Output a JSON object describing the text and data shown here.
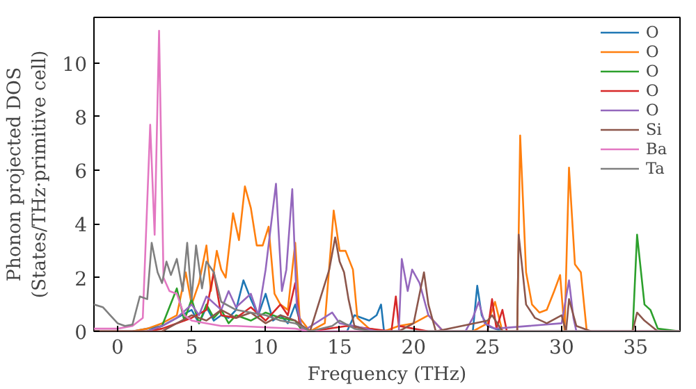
{
  "chart_data": {
    "type": "line",
    "xlabel": "Frequency (THz)",
    "ylabel": "Phonon projected DOS\n(States/THz·primitive cell)",
    "xlim": [
      -1.6,
      38
    ],
    "ylim": [
      0,
      11.7
    ],
    "xticks": [
      0,
      5,
      10,
      15,
      20,
      25,
      30,
      35
    ],
    "yticks": [
      0,
      2,
      4,
      6,
      8,
      10
    ],
    "grid": false,
    "legend": "top right",
    "line_style": "solid",
    "series": [
      {
        "name": "O",
        "color": "#1f77b4",
        "x": [
          -1.6,
          1,
          2,
          3,
          4,
          5,
          5.5,
          6,
          6.5,
          7,
          7.5,
          8,
          8.5,
          9,
          9.5,
          10,
          10.5,
          11,
          11.5,
          12,
          12.5,
          15.5,
          16,
          17,
          17.5,
          17.8,
          18,
          24,
          24.3,
          24.6,
          25,
          26,
          38
        ],
        "values": [
          0,
          0,
          0.1,
          0.2,
          0.5,
          0.8,
          0.3,
          0.9,
          0.4,
          0.6,
          0.5,
          0.8,
          1.9,
          1.2,
          0.6,
          1.4,
          0.4,
          0.6,
          0.3,
          1.0,
          0,
          0,
          0.6,
          0.4,
          0.6,
          1.0,
          0,
          0,
          1.7,
          0.6,
          0.2,
          0,
          0
        ]
      },
      {
        "name": "O",
        "color": "#ff7f0e",
        "x": [
          -1.6,
          1,
          2,
          3,
          4,
          4.6,
          5,
          5.5,
          6,
          6.3,
          6.7,
          7,
          7.3,
          7.8,
          8.2,
          8.6,
          9,
          9.4,
          9.8,
          10.2,
          10.6,
          11,
          11.5,
          12,
          12.3,
          13,
          14,
          14.6,
          15,
          15.4,
          15.9,
          16.2,
          17,
          18,
          19,
          20,
          21,
          22,
          24,
          25,
          25.5,
          26,
          27,
          27.2,
          27.6,
          28,
          28.5,
          29,
          29.5,
          29.9,
          30.2,
          30.5,
          30.9,
          31.3,
          31.7,
          38
        ],
        "values": [
          0,
          0,
          0.1,
          0.3,
          0.6,
          2.2,
          1.0,
          1.8,
          3.2,
          1.5,
          3.0,
          2.3,
          2.0,
          4.4,
          3.4,
          5.4,
          4.6,
          3.2,
          3.2,
          3.9,
          1.4,
          1.0,
          0.8,
          3.3,
          0.5,
          0,
          0.3,
          4.5,
          3.0,
          3.0,
          2.3,
          0.5,
          0.1,
          0,
          0.2,
          0.3,
          0.6,
          0,
          0,
          0.3,
          1.1,
          0,
          0,
          7.3,
          2.2,
          1.0,
          0.7,
          0.8,
          1.5,
          2.1,
          0,
          6.1,
          2.5,
          2.2,
          0,
          0
        ]
      },
      {
        "name": "O",
        "color": "#2ca02c",
        "x": [
          -1.6,
          2,
          3,
          4,
          4.5,
          5,
          5.5,
          6,
          6.5,
          7,
          7.5,
          8,
          9,
          10,
          11,
          12,
          12.5,
          34.8,
          35.1,
          35.6,
          36,
          36.5,
          38
        ],
        "values": [
          0,
          0,
          0.2,
          1.6,
          0.4,
          1.2,
          0.3,
          1.0,
          0.5,
          0.8,
          0.3,
          0.6,
          0.4,
          0.7,
          0.5,
          0.4,
          0,
          0,
          3.6,
          1.0,
          0.8,
          0.1,
          0
        ]
      },
      {
        "name": "O",
        "color": "#d62728",
        "x": [
          -1.6,
          2,
          3,
          4,
          5,
          6,
          6.5,
          7,
          8,
          9,
          10,
          11,
          11.5,
          12,
          12.3,
          13,
          15.5,
          17,
          18.5,
          18.8,
          19,
          20,
          21,
          25,
          25.3,
          25.6,
          26,
          26.3,
          38
        ],
        "values": [
          0,
          0,
          0.1,
          0.3,
          0.5,
          0.8,
          2.2,
          0.6,
          0.5,
          0.9,
          0.4,
          1.0,
          0.6,
          1.8,
          0.2,
          0,
          0.2,
          0.1,
          0,
          1.3,
          0.2,
          0.1,
          0,
          0,
          1.2,
          0.1,
          0.8,
          0,
          0
        ]
      },
      {
        "name": "O",
        "color": "#9467bd",
        "x": [
          -1.6,
          2,
          3,
          4,
          5,
          5.5,
          6,
          7,
          7.5,
          8,
          9,
          9.5,
          10,
          10.7,
          11.1,
          11.4,
          11.8,
          12.1,
          12.5,
          14.5,
          15,
          16,
          17.5,
          19,
          19.2,
          19.6,
          19.9,
          20.4,
          21,
          22,
          23.5,
          24,
          24.4,
          24.8,
          25.5,
          30,
          30.5,
          30.8,
          31,
          38
        ],
        "values": [
          0,
          0,
          0.2,
          0.5,
          1.0,
          0.6,
          1.3,
          0.8,
          1.5,
          0.9,
          1.4,
          0.6,
          2.3,
          5.5,
          1.5,
          2.3,
          5.3,
          1.0,
          0,
          0.7,
          0.3,
          0.2,
          0,
          0,
          2.7,
          1.5,
          2.3,
          1.8,
          0.6,
          0,
          0,
          0.5,
          1.1,
          0.3,
          0.1,
          0.3,
          1.9,
          0.5,
          0,
          0
        ]
      },
      {
        "name": "Si",
        "color": "#8c564b",
        "x": [
          -1.6,
          3,
          4,
          5,
          6,
          7,
          8,
          9,
          10,
          11,
          12,
          13,
          14.3,
          14.7,
          15,
          15.3,
          15.6,
          16,
          17,
          19,
          20,
          20.7,
          21,
          21.5,
          25,
          25.3,
          26,
          27,
          27.1,
          27.6,
          28.2,
          29,
          30,
          30.3,
          30.5,
          31,
          32,
          34.8,
          35.1,
          35.6,
          36.5,
          38
        ],
        "values": [
          0,
          0,
          0.3,
          0.6,
          0.4,
          0.8,
          0.5,
          0.7,
          0.3,
          0.6,
          0.4,
          0,
          2.3,
          3.5,
          2.6,
          2.2,
          1.2,
          0.2,
          0,
          0,
          0.3,
          2.2,
          1.0,
          0,
          0.4,
          0.6,
          0,
          0,
          3.6,
          1.0,
          0.5,
          0.3,
          0.6,
          0,
          1.2,
          0.2,
          0,
          0,
          0.7,
          0.4,
          0,
          0
        ]
      },
      {
        "name": "Ba",
        "color": "#e377c2",
        "x": [
          -1.6,
          0,
          1,
          1.7,
          2.2,
          2.5,
          2.8,
          3.1,
          3.5,
          4,
          4.5,
          5,
          6,
          7,
          8,
          10,
          12,
          13,
          38
        ],
        "values": [
          0.1,
          0.1,
          0.2,
          0.5,
          7.7,
          3.6,
          11.2,
          2.0,
          1.5,
          1.4,
          0.6,
          0.4,
          0.3,
          0.2,
          0.2,
          0.15,
          0.1,
          0,
          0
        ]
      },
      {
        "name": "Ta",
        "color": "#7f7f7f",
        "x": [
          -1.6,
          -1,
          -0.5,
          0,
          0.5,
          1,
          1.5,
          2,
          2.3,
          2.7,
          3,
          3.3,
          3.6,
          4,
          4.4,
          4.7,
          5,
          5.3,
          5.7,
          6,
          6.5,
          7,
          8,
          9,
          10,
          11,
          12,
          13,
          14.5,
          15,
          16,
          17,
          38
        ],
        "values": [
          1.0,
          0.9,
          0.6,
          0.3,
          0.2,
          0.25,
          1.3,
          1.2,
          3.3,
          2.2,
          1.8,
          2.6,
          2.1,
          2.7,
          1.5,
          3.3,
          1.2,
          3.2,
          1.6,
          2.6,
          2.2,
          1.1,
          0.8,
          0.7,
          0.6,
          0.4,
          0.3,
          0,
          0.2,
          0.4,
          0.1,
          0,
          0
        ]
      }
    ]
  }
}
